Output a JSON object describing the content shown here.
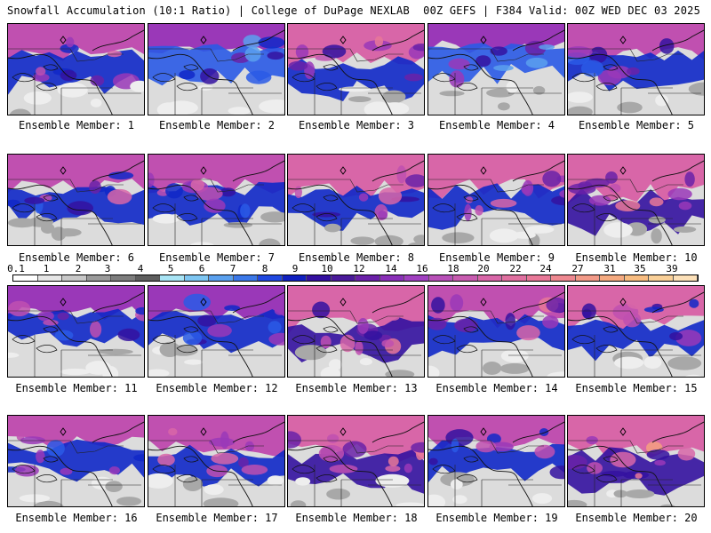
{
  "header": {
    "title_left": "Snowfall Accumulation (10:1 Ratio) | College of DuPage NEXLAB",
    "title_right": "00Z GEFS | F384 Valid: 00Z WED DEC 03 2025"
  },
  "members": [
    {
      "label": "Ensemble Member: 1",
      "intensity": 0.55
    },
    {
      "label": "Ensemble Member: 2",
      "intensity": 0.35
    },
    {
      "label": "Ensemble Member: 3",
      "intensity": 0.75
    },
    {
      "label": "Ensemble Member: 4",
      "intensity": 0.3
    },
    {
      "label": "Ensemble Member: 5",
      "intensity": 0.55
    },
    {
      "label": "Ensemble Member: 6",
      "intensity": 0.6
    },
    {
      "label": "Ensemble Member: 7",
      "intensity": 0.6
    },
    {
      "label": "Ensemble Member: 8",
      "intensity": 0.7
    },
    {
      "label": "Ensemble Member: 9",
      "intensity": 0.7
    },
    {
      "label": "Ensemble Member: 10",
      "intensity": 0.85
    },
    {
      "label": "Ensemble Member: 11",
      "intensity": 0.45
    },
    {
      "label": "Ensemble Member: 12",
      "intensity": 0.45
    },
    {
      "label": "Ensemble Member: 13",
      "intensity": 0.8
    },
    {
      "label": "Ensemble Member: 14",
      "intensity": 0.65
    },
    {
      "label": "Ensemble Member: 15",
      "intensity": 0.7
    },
    {
      "label": "Ensemble Member: 16",
      "intensity": 0.5
    },
    {
      "label": "Ensemble Member: 17",
      "intensity": 0.65
    },
    {
      "label": "Ensemble Member: 18",
      "intensity": 0.8
    },
    {
      "label": "Ensemble Member: 19",
      "intensity": 0.5
    },
    {
      "label": "Ensemble Member: 20",
      "intensity": 0.8
    }
  ],
  "color_scale": {
    "labels": [
      "0.1",
      "1",
      "2",
      "3",
      "4",
      "5",
      "6",
      "7",
      "8",
      "9",
      "10",
      "12",
      "14",
      "16",
      "18",
      "20",
      "22",
      "24",
      "27",
      "31",
      "35",
      "39"
    ],
    "colors": [
      "#ffffff",
      "#e6e6e6",
      "#c8c8c8",
      "#9a9a9a",
      "#7d7d7d",
      "#5e5e5e",
      "#a8e4f5",
      "#7ec6f2",
      "#5aa0ee",
      "#3b78e8",
      "#2048e0",
      "#1020c0",
      "#3410a0",
      "#4a1a9a",
      "#6a20a8",
      "#8a30b8",
      "#a040c0",
      "#b850b8",
      "#c85cb0",
      "#d866a8",
      "#e070a0",
      "#e87898",
      "#ee8890",
      "#f29a88",
      "#f5aa80",
      "#f8bc80",
      "#fad098",
      "#fce0b8"
    ]
  }
}
